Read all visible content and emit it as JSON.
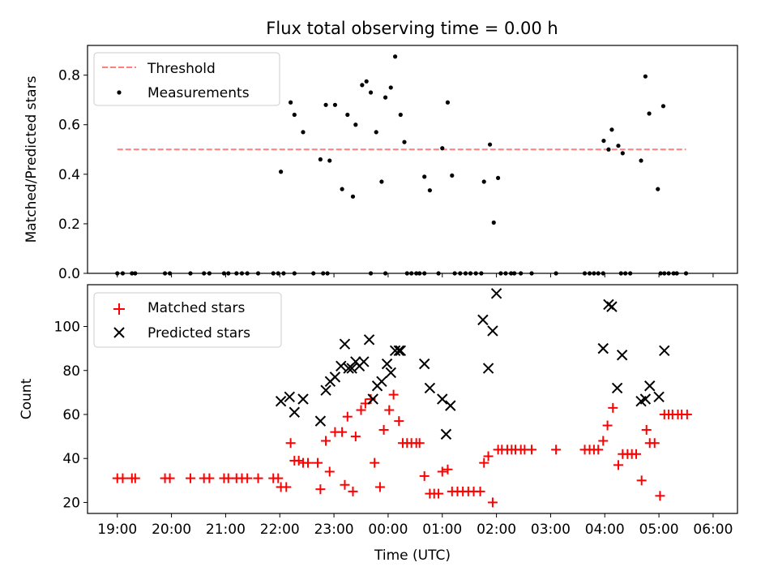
{
  "chart_data": [
    {
      "type": "scatter",
      "title": "Flux total observing time = 0.00 h",
      "xlabel": "",
      "ylabel": "Matched/Predicted stars",
      "xlim": [
        -0.55,
        11.45
      ],
      "ylim": [
        0,
        0.92
      ],
      "x_is_hours_since": "19:00 UTC",
      "x_ticks": [
        0,
        1,
        2,
        3,
        4,
        5,
        6,
        7,
        8,
        9,
        10,
        11
      ],
      "y_ticks": [
        0,
        0.2,
        0.4,
        0.6,
        0.8
      ],
      "y_tick_labels": [
        "0.0",
        "0.2",
        "0.4",
        "0.6",
        "0.8"
      ],
      "legend_position": "top-left",
      "series": [
        {
          "name": "Threshold",
          "style": "dashed-line",
          "color": "#ff7f7f",
          "x": [
            0,
            10.5
          ],
          "y": [
            0.5,
            0.5
          ]
        },
        {
          "name": "Measurements",
          "style": "dot",
          "color": "#000000",
          "points": [
            [
              0,
              0
            ],
            [
              0.1,
              0
            ],
            [
              0.27,
              0
            ],
            [
              0.33,
              0
            ],
            [
              0.88,
              0
            ],
            [
              0.97,
              0
            ],
            [
              1.35,
              0
            ],
            [
              1.6,
              0
            ],
            [
              1.7,
              0
            ],
            [
              1.97,
              0
            ],
            [
              2.05,
              0
            ],
            [
              2.2,
              0
            ],
            [
              2.3,
              0
            ],
            [
              2.4,
              0
            ],
            [
              2.6,
              0
            ],
            [
              2.88,
              0
            ],
            [
              2.97,
              0
            ],
            [
              3.27,
              0
            ],
            [
              3.62,
              0
            ],
            [
              3.8,
              0
            ],
            [
              3.88,
              0
            ],
            [
              3.07,
              0
            ],
            [
              3.02,
              0.41
            ],
            [
              3.2,
              0.69
            ],
            [
              3.27,
              0.64
            ],
            [
              3.43,
              0.57
            ],
            [
              3.75,
              0.46
            ],
            [
              3.92,
              0.455
            ],
            [
              3.85,
              0.68
            ],
            [
              4.02,
              0.68
            ],
            [
              4.15,
              0.34
            ],
            [
              4.25,
              0.64
            ],
            [
              4.35,
              0.31
            ],
            [
              4.4,
              0.6
            ],
            [
              4.52,
              0.76
            ],
            [
              4.6,
              0.775
            ],
            [
              4.68,
              0.73
            ],
            [
              4.78,
              0.57
            ],
            [
              4.88,
              0.37
            ],
            [
              4.95,
              0.71
            ],
            [
              5.05,
              0.75
            ],
            [
              5.13,
              0.875
            ],
            [
              5.23,
              0.64
            ],
            [
              5.3,
              0.53
            ],
            [
              5.67,
              0.39
            ],
            [
              5.77,
              0.335
            ],
            [
              6,
              0.505
            ],
            [
              6.1,
              0.69
            ],
            [
              6.18,
              0.395
            ],
            [
              6.77,
              0.37
            ],
            [
              6.88,
              0.52
            ],
            [
              6.95,
              0.205
            ],
            [
              7.03,
              0.385
            ],
            [
              4.68,
              0
            ],
            [
              4.95,
              0
            ],
            [
              5.35,
              0
            ],
            [
              5.43,
              0
            ],
            [
              5.52,
              0
            ],
            [
              5.58,
              0
            ],
            [
              5.67,
              0
            ],
            [
              5.93,
              0
            ],
            [
              6.23,
              0
            ],
            [
              6.33,
              0
            ],
            [
              6.43,
              0
            ],
            [
              6.52,
              0
            ],
            [
              6.62,
              0
            ],
            [
              6.72,
              0
            ],
            [
              7.08,
              0
            ],
            [
              7.17,
              0
            ],
            [
              7.27,
              0
            ],
            [
              7.33,
              0
            ],
            [
              7.45,
              0
            ],
            [
              7.65,
              0
            ],
            [
              8.1,
              0
            ],
            [
              8.63,
              0
            ],
            [
              8.72,
              0
            ],
            [
              8.8,
              0
            ],
            [
              8.88,
              0
            ],
            [
              8.97,
              0
            ],
            [
              9.3,
              0
            ],
            [
              9.38,
              0
            ],
            [
              9.47,
              0
            ],
            [
              10.03,
              0
            ],
            [
              10.1,
              0
            ],
            [
              10.18,
              0
            ],
            [
              10.27,
              0
            ],
            [
              10.33,
              0
            ],
            [
              10.5,
              0
            ],
            [
              8.98,
              0.535
            ],
            [
              9.07,
              0.5
            ],
            [
              9.13,
              0.58
            ],
            [
              9.25,
              0.515
            ],
            [
              9.33,
              0.485
            ],
            [
              9.67,
              0.455
            ],
            [
              9.75,
              0.795
            ],
            [
              9.82,
              0.645
            ],
            [
              9.98,
              0.34
            ],
            [
              10.08,
              0.675
            ]
          ]
        }
      ]
    },
    {
      "type": "scatter",
      "title": "",
      "xlabel": "Time (UTC)",
      "ylabel": "Count",
      "xlim": [
        -0.55,
        11.45
      ],
      "ylim": [
        15,
        119
      ],
      "x_ticks": [
        0,
        1,
        2,
        3,
        4,
        5,
        6,
        7,
        8,
        9,
        10,
        11
      ],
      "x_tick_labels": [
        "19:00",
        "20:00",
        "21:00",
        "22:00",
        "23:00",
        "00:00",
        "01:00",
        "02:00",
        "03:00",
        "04:00",
        "05:00",
        "06:00"
      ],
      "y_ticks": [
        20,
        40,
        60,
        80,
        100
      ],
      "y_tick_labels": [
        "20",
        "40",
        "60",
        "80",
        "100"
      ],
      "legend_position": "top-left",
      "series": [
        {
          "name": "Matched stars",
          "style": "plus",
          "color": "#ff0000",
          "points": [
            [
              0,
              31
            ],
            [
              0.1,
              31
            ],
            [
              0.27,
              31
            ],
            [
              0.33,
              31
            ],
            [
              0.88,
              31
            ],
            [
              0.97,
              31
            ],
            [
              1.35,
              31
            ],
            [
              1.6,
              31
            ],
            [
              1.7,
              31
            ],
            [
              1.97,
              31
            ],
            [
              2.05,
              31
            ],
            [
              2.2,
              31
            ],
            [
              2.3,
              31
            ],
            [
              2.4,
              31
            ],
            [
              2.6,
              31
            ],
            [
              2.88,
              31
            ],
            [
              2.97,
              31
            ],
            [
              3.02,
              27
            ],
            [
              3.12,
              27
            ],
            [
              3.2,
              47
            ],
            [
              3.27,
              39
            ],
            [
              3.35,
              39
            ],
            [
              3.43,
              38
            ],
            [
              3.52,
              38
            ],
            [
              3.7,
              38
            ],
            [
              3.75,
              26
            ],
            [
              3.85,
              48
            ],
            [
              3.92,
              34
            ],
            [
              4.02,
              52
            ],
            [
              4.15,
              52
            ],
            [
              4.2,
              28
            ],
            [
              4.25,
              59
            ],
            [
              4.35,
              25
            ],
            [
              4.4,
              50
            ],
            [
              4.5,
              62
            ],
            [
              4.58,
              65
            ],
            [
              4.68,
              67
            ],
            [
              4.75,
              38
            ],
            [
              4.85,
              27
            ],
            [
              4.92,
              53
            ],
            [
              5.02,
              62
            ],
            [
              5.1,
              69
            ],
            [
              5.2,
              57
            ],
            [
              5.27,
              47
            ],
            [
              5.35,
              47
            ],
            [
              5.43,
              47
            ],
            [
              5.52,
              47
            ],
            [
              5.58,
              47
            ],
            [
              5.67,
              32
            ],
            [
              5.77,
              24
            ],
            [
              5.85,
              24
            ],
            [
              5.93,
              24
            ],
            [
              6,
              34
            ],
            [
              6.1,
              35
            ],
            [
              6.18,
              25
            ],
            [
              6.28,
              25
            ],
            [
              6.38,
              25
            ],
            [
              6.48,
              25
            ],
            [
              6.58,
              25
            ],
            [
              6.7,
              25
            ],
            [
              6.77,
              38
            ],
            [
              6.85,
              41
            ],
            [
              6.93,
              20
            ],
            [
              7.03,
              44
            ],
            [
              7.1,
              44
            ],
            [
              7.2,
              44
            ],
            [
              7.28,
              44
            ],
            [
              7.35,
              44
            ],
            [
              7.45,
              44
            ],
            [
              7.52,
              44
            ],
            [
              7.65,
              44
            ],
            [
              8.1,
              44
            ],
            [
              8.63,
              44
            ],
            [
              8.72,
              44
            ],
            [
              8.8,
              44
            ],
            [
              8.88,
              44
            ],
            [
              8.97,
              48
            ],
            [
              9.05,
              55
            ],
            [
              9.15,
              63
            ],
            [
              9.25,
              37
            ],
            [
              9.33,
              42
            ],
            [
              9.42,
              42
            ],
            [
              9.5,
              42
            ],
            [
              9.58,
              42
            ],
            [
              9.68,
              30
            ],
            [
              9.77,
              53
            ],
            [
              9.83,
              47
            ],
            [
              9.92,
              47
            ],
            [
              10.02,
              23
            ],
            [
              10.1,
              60
            ],
            [
              10.18,
              60
            ],
            [
              10.25,
              60
            ],
            [
              10.35,
              60
            ],
            [
              10.42,
              60
            ],
            [
              10.52,
              60
            ]
          ]
        },
        {
          "name": "Predicted stars",
          "style": "x",
          "color": "#000000",
          "points": [
            [
              3.02,
              66
            ],
            [
              3.18,
              68
            ],
            [
              3.27,
              61
            ],
            [
              3.43,
              67
            ],
            [
              3.75,
              57
            ],
            [
              3.85,
              71
            ],
            [
              3.93,
              75
            ],
            [
              4.02,
              77
            ],
            [
              4.13,
              82
            ],
            [
              4.2,
              92
            ],
            [
              4.27,
              81
            ],
            [
              4.33,
              81
            ],
            [
              4.4,
              84
            ],
            [
              4.47,
              82
            ],
            [
              4.55,
              84
            ],
            [
              4.65,
              94
            ],
            [
              4.72,
              67
            ],
            [
              4.8,
              73
            ],
            [
              4.88,
              75
            ],
            [
              4.98,
              83
            ],
            [
              5.05,
              79
            ],
            [
              5.13,
              89
            ],
            [
              5.2,
              89
            ],
            [
              5.23,
              89
            ],
            [
              5.67,
              83
            ],
            [
              5.77,
              72
            ],
            [
              6,
              67
            ],
            [
              6.07,
              51
            ],
            [
              6.15,
              64
            ],
            [
              6.75,
              103
            ],
            [
              6.85,
              81
            ],
            [
              6.93,
              98
            ],
            [
              7.0,
              115
            ],
            [
              8.97,
              90
            ],
            [
              9.07,
              110
            ],
            [
              9.13,
              109
            ],
            [
              9.23,
              72
            ],
            [
              9.32,
              87
            ],
            [
              9.67,
              66
            ],
            [
              9.75,
              67
            ],
            [
              9.83,
              73
            ],
            [
              10.0,
              68
            ],
            [
              10.1,
              89
            ]
          ]
        }
      ]
    }
  ]
}
